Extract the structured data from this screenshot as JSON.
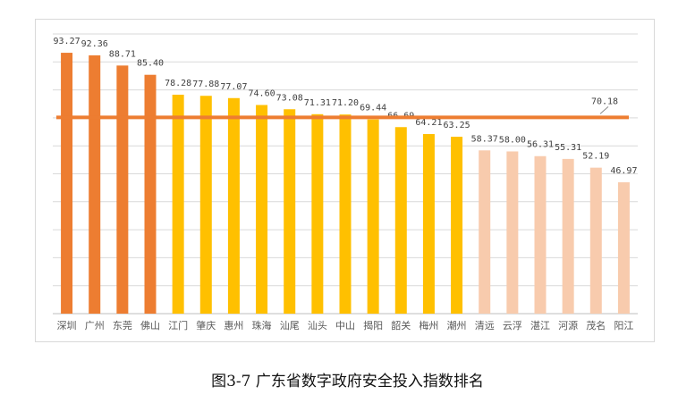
{
  "caption": "图3-7 广东省数字政府安全投入指数排名",
  "chart_data": {
    "type": "bar",
    "categories": [
      "深圳",
      "广州",
      "东莞",
      "佛山",
      "江门",
      "肇庆",
      "惠州",
      "珠海",
      "汕尾",
      "汕头",
      "中山",
      "揭阳",
      "韶关",
      "梅州",
      "潮州",
      "清远",
      "云浮",
      "湛江",
      "河源",
      "茂名",
      "阳江"
    ],
    "values": [
      93.27,
      92.36,
      88.71,
      85.4,
      78.28,
      77.88,
      77.07,
      74.6,
      73.08,
      71.31,
      71.2,
      69.44,
      66.69,
      64.21,
      63.25,
      58.37,
      58.0,
      56.31,
      55.31,
      52.19,
      46.97
    ],
    "value_labels": [
      "93.27",
      "92.36",
      "88.71",
      "85.40",
      "78.28",
      "77.88",
      "77.07",
      "74.60",
      "73.08",
      "71.31",
      "71.20",
      "69.44",
      "66.69",
      "64.21",
      "63.25",
      "58.37",
      "58.00",
      "56.31",
      "55.31",
      "52.19",
      "46.97"
    ],
    "tier_colors": [
      "#ed7d31",
      "#ed7d31",
      "#ed7d31",
      "#ed7d31",
      "#ffc000",
      "#ffc000",
      "#ffc000",
      "#ffc000",
      "#ffc000",
      "#ffc000",
      "#ffc000",
      "#ffc000",
      "#ffc000",
      "#ffc000",
      "#ffc000",
      "#f8cbad",
      "#f8cbad",
      "#f8cbad",
      "#f8cbad",
      "#f8cbad",
      "#f8cbad"
    ],
    "reference_line": {
      "value": 70.18,
      "label": "70.18",
      "color": "#ed7d31"
    },
    "ylim": [
      0,
      100
    ],
    "gridlines": true,
    "gridline_color": "#d9d9d9",
    "xlabel": "",
    "ylabel": ""
  }
}
